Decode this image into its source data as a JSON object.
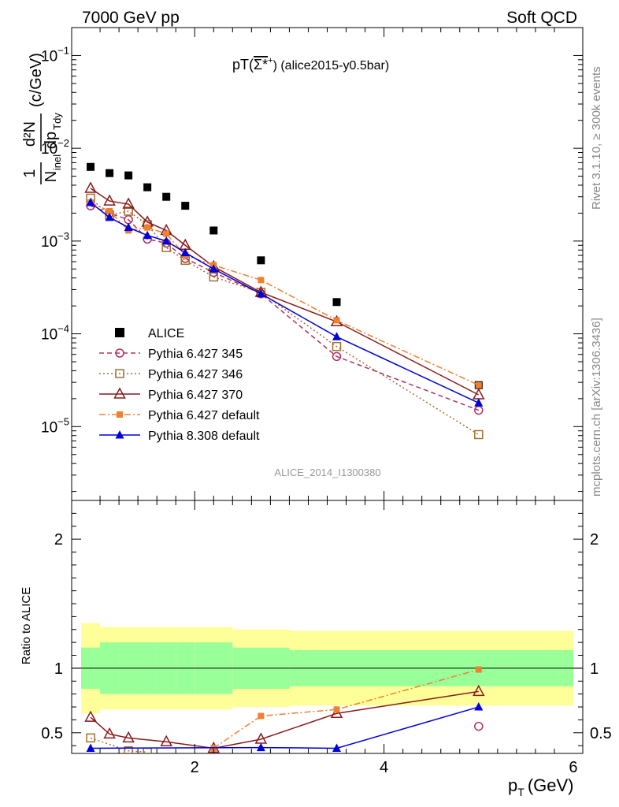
{
  "header": {
    "left": "7000 GeV pp",
    "right": "Soft QCD"
  },
  "side_text": {
    "rivet": "Rivet 3.1.10, ≥ 300k events",
    "mcplots": "mcplots.cern.ch [arXiv:1306.3436]"
  },
  "plot_title": {
    "prefix": "pT(",
    "particle": "Σ*",
    "charge": "+",
    "suffix": ") (alice2015-y0.5bar)"
  },
  "watermark": "ALICE_2014_I1300380",
  "axes": {
    "ylabel_top": {
      "frac_num": "1",
      "frac_den": "N",
      "frac_den_sub": "inel",
      "deriv_num": "d²N",
      "deriv_den": "dp",
      "deriv_den_sub": "Tdy",
      "unit": "(c/GeV)"
    },
    "ylabel_bottom": "Ratio to ALICE",
    "xlabel_main": "p",
    "xlabel_sub": "T",
    "xlabel_unit": "(GeV)",
    "x_ticks": [
      "2",
      "4",
      "6"
    ],
    "y_ticks_top": [
      {
        "base": "10",
        "exp": "−1"
      },
      {
        "base": "10",
        "exp": "−2"
      },
      {
        "base": "10",
        "exp": "−3"
      },
      {
        "base": "10",
        "exp": "−4"
      },
      {
        "base": "10",
        "exp": "−5"
      }
    ],
    "y_ticks_bottom": [
      "2",
      "1",
      "0.5"
    ]
  },
  "chart_data": {
    "type": "scatter",
    "x_range": [
      0.7,
      6.1
    ],
    "top_panel": {
      "y_log": true,
      "y_range": [
        1.6e-06,
        0.2
      ],
      "series": [
        {
          "name": "ALICE",
          "marker": "filled-square",
          "color": "#000000",
          "line": "none",
          "x": [
            0.9,
            1.1,
            1.3,
            1.5,
            1.7,
            1.9,
            2.2,
            2.7,
            3.5,
            5.0
          ],
          "y": [
            0.0063,
            0.0054,
            0.0051,
            0.0038,
            0.003,
            0.0024,
            0.0013,
            0.00062,
            0.00022,
            2.8e-05
          ]
        },
        {
          "name": "Pythia 6.427 345",
          "marker": "open-circle",
          "color": "#b03060",
          "line": "dashed",
          "x": [
            0.9,
            1.1,
            1.3,
            1.5,
            1.7,
            1.9,
            2.2,
            2.7,
            3.5,
            5.0
          ],
          "y": [
            0.0024,
            0.002,
            0.0017,
            0.00105,
            0.00095,
            0.00065,
            0.00046,
            0.00027,
            5.7e-05,
            1.5e-05
          ]
        },
        {
          "name": "Pythia 6.427 346",
          "marker": "open-square",
          "color": "#a07030",
          "line": "dotted",
          "x": [
            0.9,
            1.1,
            1.3,
            1.5,
            1.7,
            1.9,
            2.2,
            2.7,
            3.5,
            5.0
          ],
          "y": [
            0.0029,
            0.0019,
            0.0021,
            0.0015,
            0.00085,
            0.00062,
            0.00041,
            0.00028,
            7.3e-05,
            8.2e-06
          ]
        },
        {
          "name": "Pythia 6.427 370",
          "marker": "open-triangle",
          "color": "#8b1a1a",
          "line": "solid",
          "x": [
            0.9,
            1.1,
            1.3,
            1.5,
            1.7,
            1.9,
            2.2,
            2.7,
            3.5,
            5.0
          ],
          "y": [
            0.0037,
            0.0027,
            0.0025,
            0.0016,
            0.0013,
            0.0009,
            0.00053,
            0.00028,
            0.000135,
            2.2e-05
          ]
        },
        {
          "name": "Pythia 6.427 default",
          "marker": "filled-square-small",
          "color": "#f08030",
          "line": "dashdot",
          "x": [
            0.9,
            1.1,
            1.3,
            1.5,
            1.7,
            1.9,
            2.2,
            2.7,
            3.5,
            5.0
          ],
          "y": [
            0.0026,
            0.0021,
            0.0013,
            0.0014,
            0.0012,
            0.0007,
            0.00055,
            0.00038,
            0.00014,
            2.8e-05
          ]
        },
        {
          "name": "Pythia 8.308 default",
          "marker": "filled-triangle",
          "color": "#0000dd",
          "line": "solid",
          "x": [
            0.9,
            1.1,
            1.3,
            1.5,
            1.7,
            1.9,
            2.2,
            2.7,
            3.5,
            5.0
          ],
          "y": [
            0.0026,
            0.0018,
            0.0014,
            0.00115,
            0.001,
            0.00075,
            0.0005,
            0.00027,
            9.3e-05,
            1.8e-05
          ]
        }
      ]
    },
    "ratio_panel": {
      "y_range": [
        0.34,
        2.3
      ],
      "bands": {
        "x_edges": [
          0.8,
          1.0,
          1.2,
          1.4,
          1.6,
          1.8,
          2.0,
          2.4,
          3.0,
          4.0,
          6.0
        ],
        "inner_lo": [
          0.84,
          0.8,
          0.8,
          0.8,
          0.8,
          0.8,
          0.8,
          0.84,
          0.86,
          0.86
        ],
        "inner_hi": [
          1.16,
          1.2,
          1.2,
          1.2,
          1.2,
          1.2,
          1.2,
          1.16,
          1.14,
          1.14
        ],
        "outer_lo": [
          0.65,
          0.68,
          0.68,
          0.68,
          0.68,
          0.68,
          0.68,
          0.7,
          0.71,
          0.71
        ],
        "outer_hi": [
          1.35,
          1.32,
          1.32,
          1.32,
          1.32,
          1.32,
          1.32,
          1.3,
          1.29,
          1.29
        ]
      },
      "series": [
        {
          "name": "Pythia 6.427 345",
          "x": [
            5.0
          ],
          "y": [
            0.55
          ]
        },
        {
          "name": "Pythia 6.427 346",
          "x": [
            0.9,
            1.3,
            1.5
          ],
          "y": [
            0.46,
            0.36,
            0.35
          ]
        },
        {
          "name": "Pythia 6.427 370",
          "x": [
            0.9,
            1.1,
            1.3,
            1.7,
            2.2,
            2.7,
            3.5,
            5.0
          ],
          "y": [
            0.62,
            0.49,
            0.46,
            0.43,
            0.38,
            0.45,
            0.65,
            0.82
          ]
        },
        {
          "name": "Pythia 6.427 default",
          "x": [
            2.2,
            2.7,
            3.5,
            5.0
          ],
          "y": [
            0.38,
            0.63,
            0.68,
            0.99
          ]
        },
        {
          "name": "Pythia 8.308 default",
          "x": [
            0.9,
            2.7,
            3.5,
            5.0
          ],
          "y": [
            0.38,
            0.385,
            0.38,
            0.7
          ]
        }
      ]
    }
  }
}
